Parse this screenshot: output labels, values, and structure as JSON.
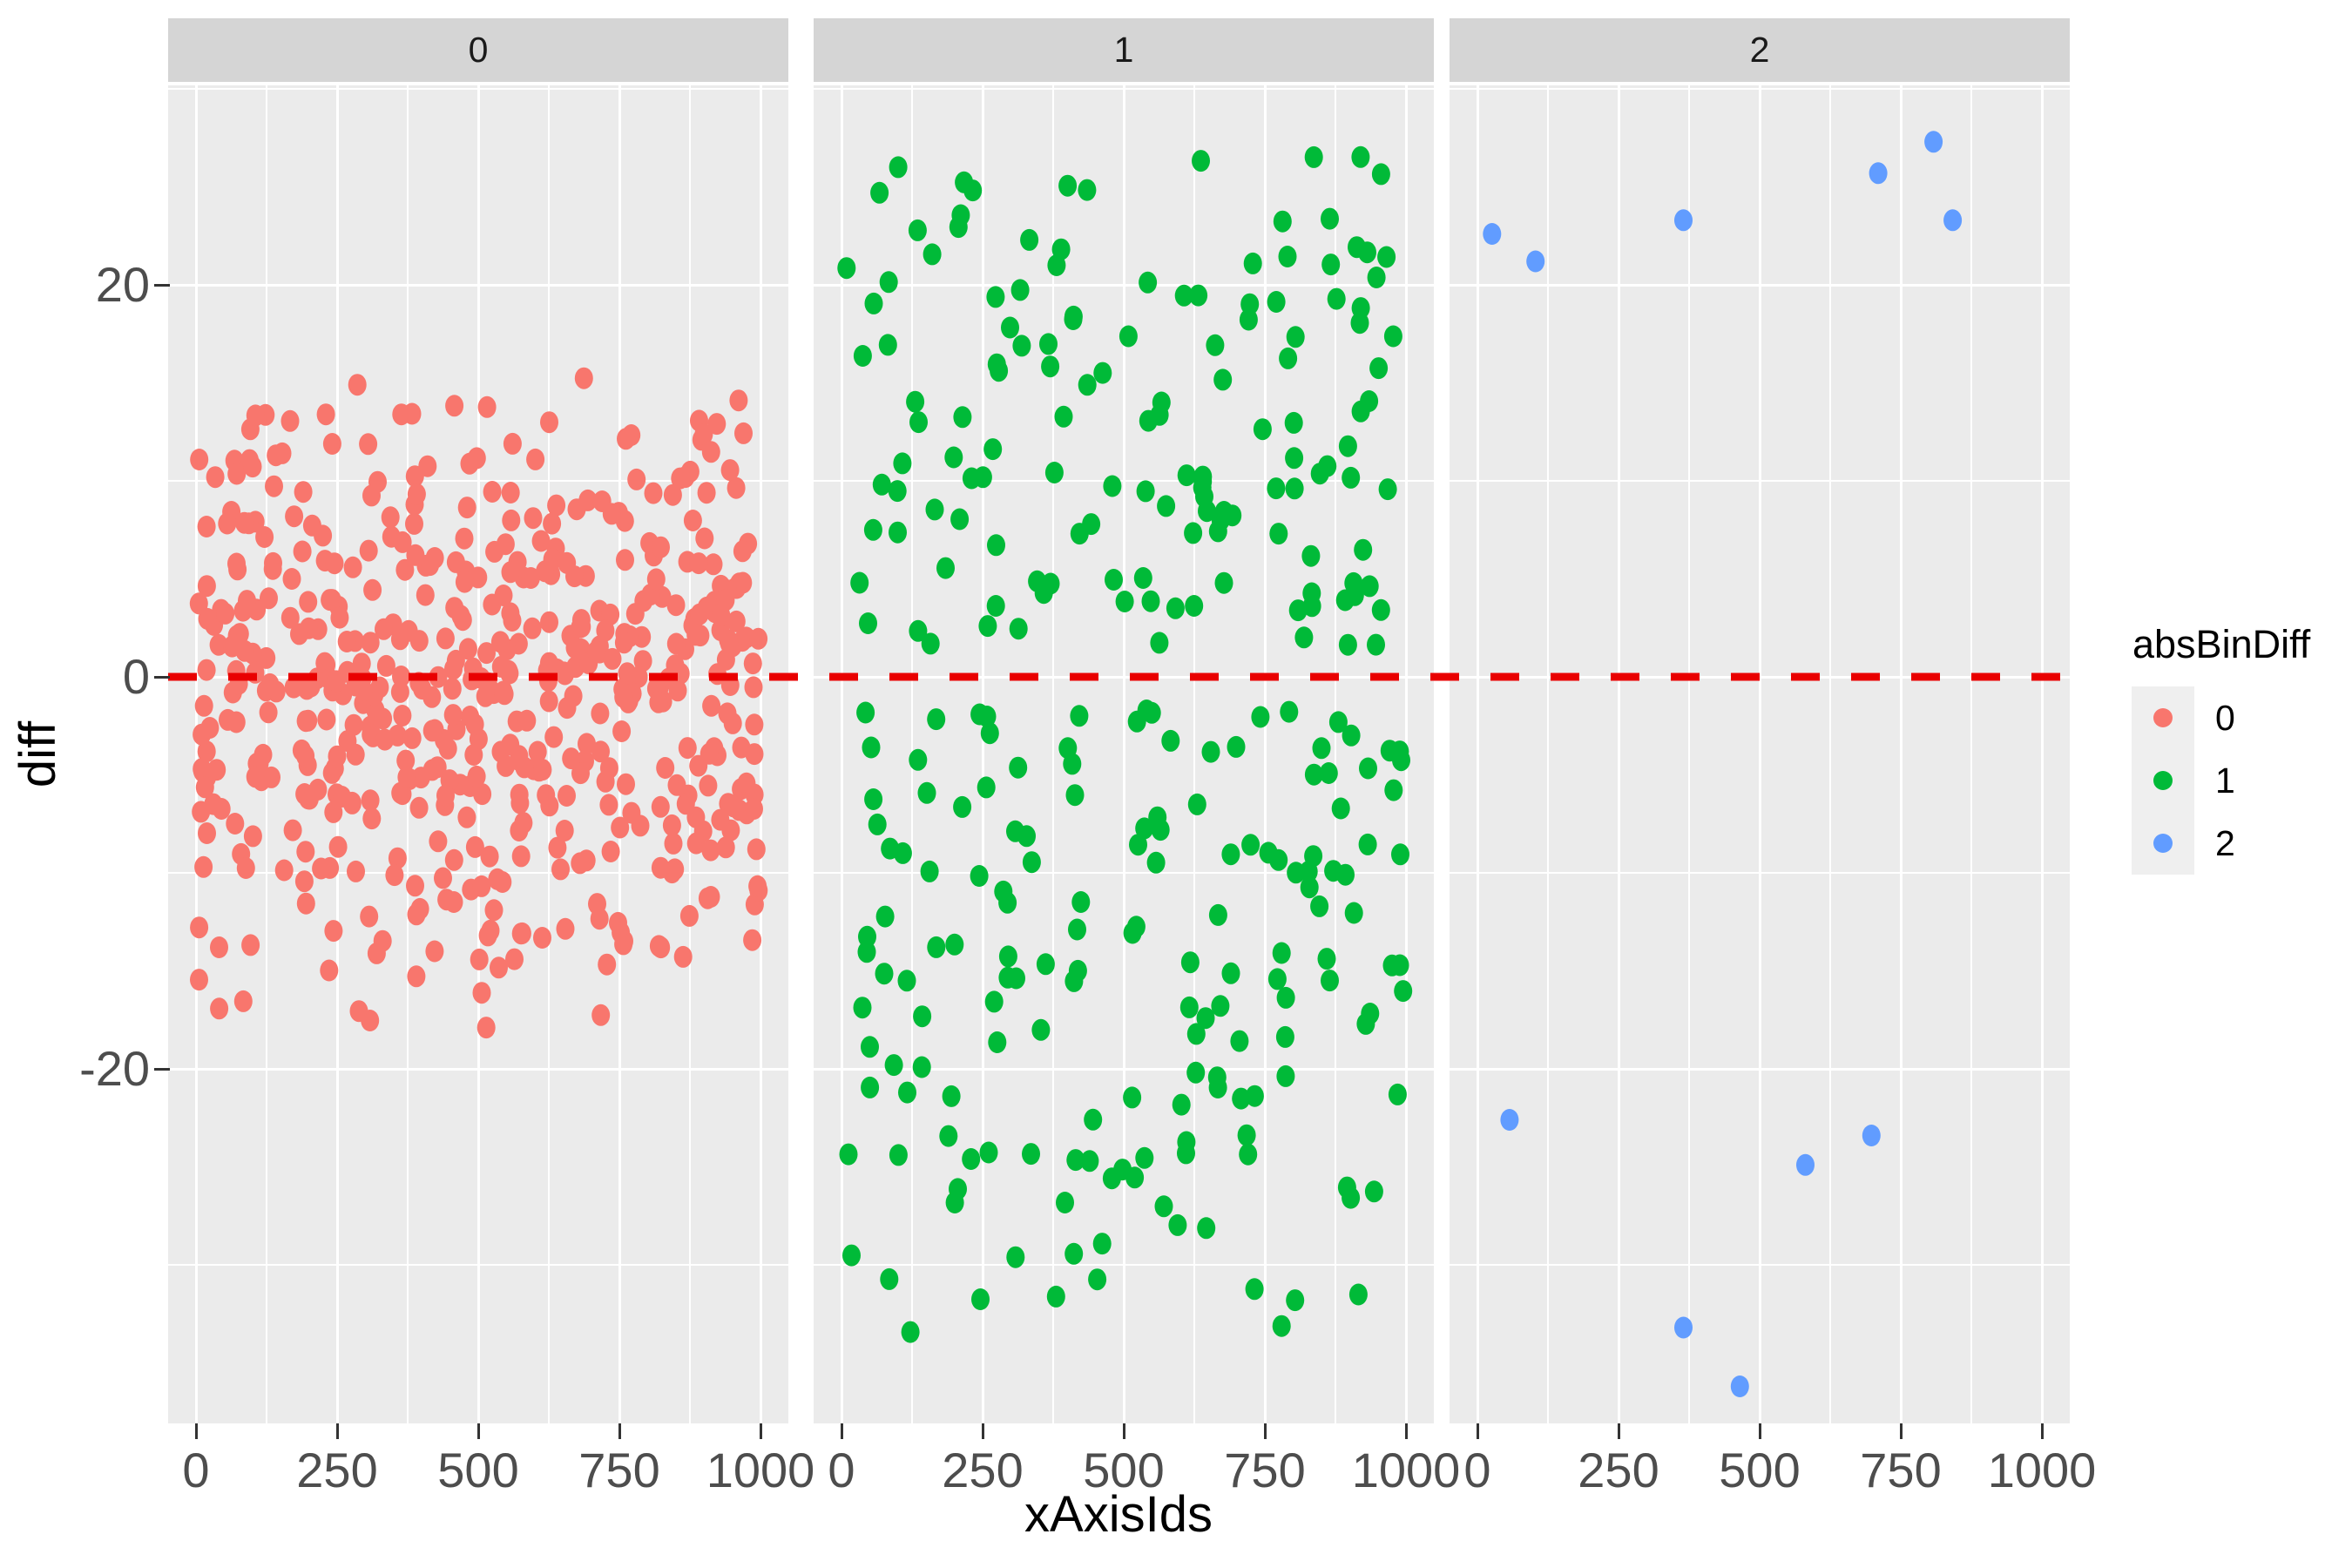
{
  "chart_data": {
    "type": "scatter",
    "title": "",
    "facet_variable": "absBinDiff",
    "facets": [
      "0",
      "1",
      "2"
    ],
    "xlabel": "xAxisIds",
    "ylabel": "diff",
    "x_tick_values": [
      0,
      250,
      500,
      750,
      1000
    ],
    "x_tick_labels": [
      "0",
      "250",
      "500",
      "750",
      "1000"
    ],
    "x_minor_gridlines": [
      125,
      375,
      625,
      875
    ],
    "y_tick_values": [
      20,
      0,
      -20
    ],
    "y_tick_labels": [
      "20",
      "0",
      "-20"
    ],
    "y_minor_gridlines": [
      30,
      10,
      -10,
      -30
    ],
    "x_range": [
      -50,
      1050
    ],
    "y_range": [
      -38,
      30.3
    ],
    "grid": "on",
    "legend_position": "right",
    "reference_line": {
      "y": 0,
      "color": "#E90000",
      "style": "dashed"
    },
    "series": [
      {
        "name": "0",
        "facet": "0",
        "color": "#F8766D",
        "marker": "dot",
        "n_points": 540,
        "seed": 11,
        "distribution": {
          "kind": "normal",
          "x_uniform": [
            5,
            998
          ],
          "y_mean": -1.0,
          "y_sd": 7.5,
          "y_min": -18.8,
          "y_max": 18.2
        }
      },
      {
        "name": "1",
        "facet": "1",
        "color": "#00BA38",
        "marker": "dot",
        "n_points": 300,
        "seed": 97,
        "distribution": {
          "kind": "split-around-zero",
          "x_uniform": [
            5,
            995
          ],
          "y_gap": [
            -1.5,
            1.5
          ],
          "y_min": -34,
          "y_max": 27.5
        }
      },
      {
        "name": "2",
        "facet": "2",
        "color": "#619CFF",
        "marker": "dot",
        "points": [
          [
            26,
            22.6
          ],
          [
            103,
            21.2
          ],
          [
            365,
            23.3
          ],
          [
            710,
            25.7
          ],
          [
            808,
            27.3
          ],
          [
            842,
            23.3
          ],
          [
            57,
            -22.6
          ],
          [
            581,
            -24.9
          ],
          [
            698,
            -23.4
          ],
          [
            365,
            -33.2
          ],
          [
            465,
            -36.2
          ]
        ]
      }
    ],
    "legend": {
      "title": "absBinDiff",
      "entries": [
        {
          "label": "0",
          "color": "#F8766D"
        },
        {
          "label": "1",
          "color": "#00BA38"
        },
        {
          "label": "2",
          "color": "#619CFF"
        }
      ]
    }
  },
  "style": {
    "background": "#FFFFFF",
    "panel_bg": "#EBEBEB",
    "strip_bg": "#D5D5D5",
    "grid_color": "#FFFFFF",
    "axis_tick_color": "#333333",
    "tick_label_color": "#4D4D4D",
    "title_color": "#000000",
    "legend_key_bg": "#EFEFEF",
    "point_colors": {
      "0": "#F8766D",
      "1": "#00BA38",
      "2": "#619CFF"
    },
    "reference_line_color": "#E90000"
  }
}
